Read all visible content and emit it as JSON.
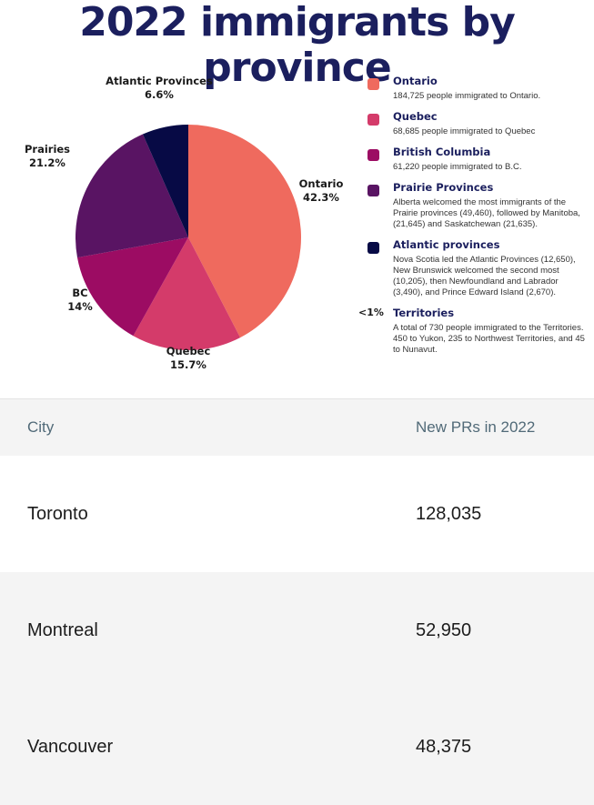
{
  "title": "2022 immigrants by province",
  "chart_data": {
    "type": "pie",
    "slices": [
      {
        "name": "Ontario",
        "label": "Ontario",
        "value": 42.3,
        "value_text": "42.3%",
        "color": "#ef6a5e"
      },
      {
        "name": "Quebec",
        "label": "Quebec",
        "value": 15.7,
        "value_text": "15.7%",
        "color": "#d43b6a"
      },
      {
        "name": "British Columbia",
        "label": "BC",
        "value": 14.0,
        "value_text": "14%",
        "color": "#9c0c63"
      },
      {
        "name": "Prairie Provinces",
        "label": "Prairies",
        "value": 21.2,
        "value_text": "21.2%",
        "color": "#591463"
      },
      {
        "name": "Atlantic provinces",
        "label": "Atlantic Provinces",
        "value": 6.6,
        "value_text": "6.6%",
        "color": "#070a45"
      }
    ]
  },
  "legend": [
    {
      "title": "Ontario",
      "color": "#ef6a5e",
      "mark": "",
      "desc": "184,725 people immigrated to Ontario."
    },
    {
      "title": "Quebec",
      "color": "#d43b6a",
      "mark": "",
      "desc": "68,685 people immigrated to Quebec"
    },
    {
      "title": "British Columbia",
      "color": "#9c0c63",
      "mark": "",
      "desc": "61,220 people immigrated to B.C."
    },
    {
      "title": "Prairie Provinces",
      "color": "#591463",
      "mark": "",
      "desc": "Alberta welcomed the most immigrants of the Prairie provinces (49,460), followed by Manitoba, (21,645) and Saskatchewan (21,635)."
    },
    {
      "title": "Atlantic provinces",
      "color": "#070a45",
      "mark": "",
      "desc": "Nova Scotia led the Atlantic Provinces (12,650), New Brunswick welcomed the second most (10,205), then Newfoundland and Labrador (3,490), and  Prince Edward Island (2,670)."
    },
    {
      "title": "Territories",
      "color": "",
      "mark": "<1%",
      "desc": "A total of 730 people immigrated to the Territories. 450 to Yukon, 235 to Northwest Territories, and 45 to Nunavut."
    }
  ],
  "table": {
    "headers": [
      "City",
      "New PRs in 2022"
    ],
    "rows": [
      {
        "city": "Toronto",
        "value": "128,035"
      },
      {
        "city": "Montreal",
        "value": "52,950"
      },
      {
        "city": "Vancouver",
        "value": "48,375"
      }
    ]
  }
}
